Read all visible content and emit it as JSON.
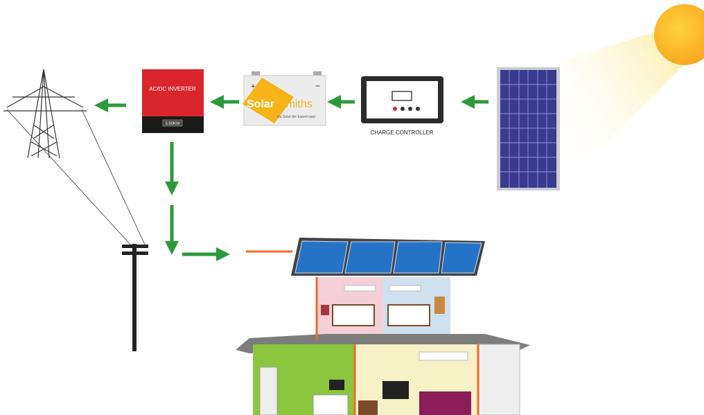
{
  "inverter": {
    "label": "AC/DC INVERTER",
    "rating": "3.50KW"
  },
  "battery": {
    "positive": "+",
    "negative": "−",
    "brand_1": "Solar",
    "brand_2": "Smiths",
    "tagline": "Go Solar the Expert way!"
  },
  "controller": {
    "label": "CHARGE CONTROLLER"
  }
}
